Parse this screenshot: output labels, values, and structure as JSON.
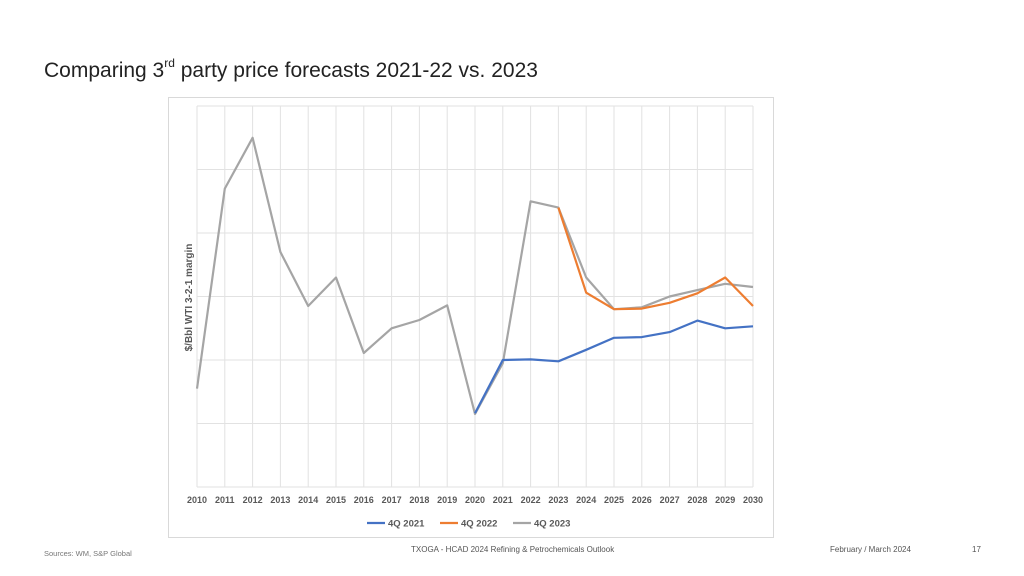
{
  "slide": {
    "title_pre": "Comparing 3",
    "title_sup": "rd",
    "title_post": " party price forecasts 2021-22 vs. 2023"
  },
  "footer": {
    "sources": "Sources: WM, S&P Global",
    "center": "TXOGA - HCAD 2024 Refining & Petrochemicals Outlook",
    "date": "February / March 2024",
    "page": "17"
  },
  "chart_data": {
    "type": "line",
    "title": "",
    "xlabel": "",
    "ylabel": "$/Bbl WTI 3-2-1 margin",
    "x": [
      2010,
      2011,
      2012,
      2013,
      2014,
      2015,
      2016,
      2017,
      2018,
      2019,
      2020,
      2021,
      2022,
      2023,
      2024,
      2025,
      2026,
      2027,
      2028,
      2029,
      2030
    ],
    "ylim": [
      0,
      6
    ],
    "grid": true,
    "legend_position": "bottom",
    "series": [
      {
        "name": "4Q 2021",
        "color": "#4472c4",
        "x": [
          2020,
          2021,
          2022,
          2023,
          2024,
          2025,
          2026,
          2027,
          2028,
          2029,
          2030
        ],
        "values": [
          1.16,
          2.0,
          2.01,
          1.98,
          2.16,
          2.35,
          2.36,
          2.44,
          2.62,
          2.5,
          2.53
        ]
      },
      {
        "name": "4Q 2022",
        "color": "#ed7d31",
        "x": [
          2023,
          2024,
          2025,
          2026,
          2027,
          2028,
          2029,
          2030
        ],
        "values": [
          4.4,
          3.06,
          2.8,
          2.81,
          2.9,
          3.05,
          3.3,
          2.85
        ]
      },
      {
        "name": "4Q 2023",
        "color": "#a5a5a5",
        "x": [
          2010,
          2011,
          2012,
          2013,
          2014,
          2015,
          2016,
          2017,
          2018,
          2019,
          2020,
          2021,
          2022,
          2023,
          2024,
          2025,
          2026,
          2027,
          2028,
          2029,
          2030
        ],
        "values": [
          1.55,
          4.7,
          5.5,
          3.7,
          2.85,
          3.3,
          2.11,
          2.5,
          2.63,
          2.86,
          1.15,
          1.95,
          4.5,
          4.4,
          3.3,
          2.8,
          2.83,
          3.0,
          3.1,
          3.2,
          3.15
        ]
      }
    ]
  }
}
